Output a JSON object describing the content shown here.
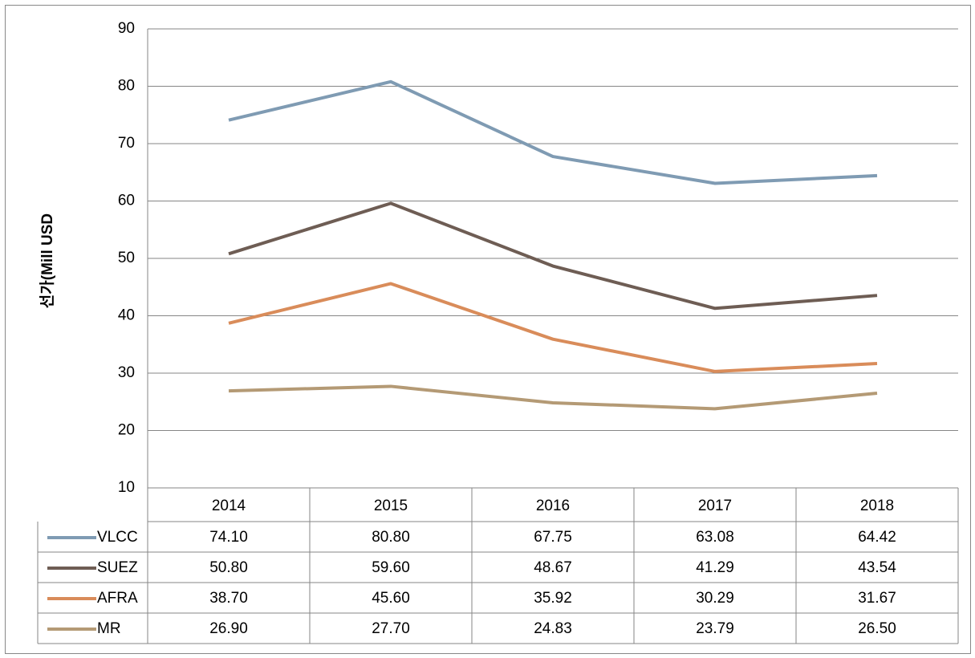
{
  "chart_data": {
    "type": "line",
    "y_label": "선가(Mill USD",
    "categories": [
      "2014",
      "2015",
      "2016",
      "2017",
      "2018"
    ],
    "series": [
      {
        "name": "VLCC",
        "color": "#7f9bb3",
        "values": [
          74.1,
          80.8,
          67.75,
          63.08,
          64.42
        ],
        "value_labels": [
          "74.10",
          "80.80",
          "67.75",
          "63.08",
          "64.42"
        ]
      },
      {
        "name": "SUEZ",
        "color": "#6e5d54",
        "values": [
          50.8,
          59.6,
          48.67,
          41.29,
          43.54
        ],
        "value_labels": [
          "50.80",
          "59.60",
          "48.67",
          "41.29",
          "43.54"
        ]
      },
      {
        "name": "AFRA",
        "color": "#d98c5a",
        "values": [
          38.7,
          45.6,
          35.92,
          30.29,
          31.67
        ],
        "value_labels": [
          "38.70",
          "45.60",
          "35.92",
          "30.29",
          "31.67"
        ]
      },
      {
        "name": "MR",
        "color": "#b49a75",
        "values": [
          26.9,
          27.7,
          24.83,
          23.79,
          26.5
        ],
        "value_labels": [
          "26.90",
          "27.70",
          "24.83",
          "23.79",
          "26.50"
        ]
      }
    ],
    "ylim": [
      10,
      90
    ],
    "yticks": [
      10,
      20,
      30,
      40,
      50,
      60,
      70,
      80,
      90
    ],
    "grid": true,
    "data_table": true
  }
}
